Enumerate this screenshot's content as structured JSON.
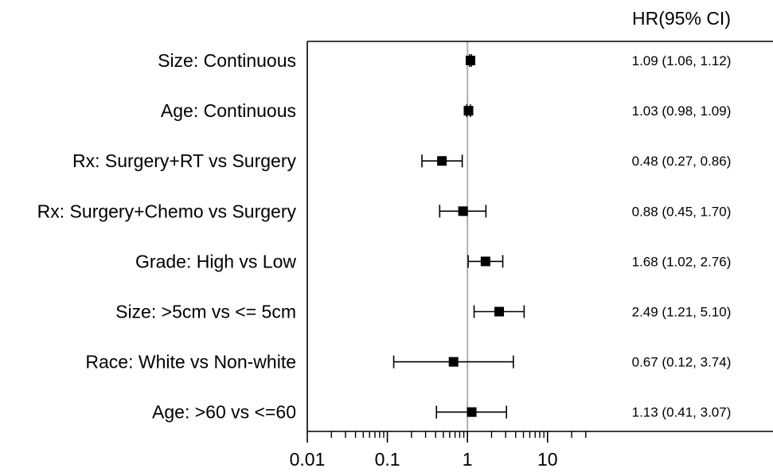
{
  "chart_data": {
    "type": "forest",
    "xscale": "log",
    "xlim": [
      0.01,
      1000
    ],
    "reference_line": 1,
    "column_header": "HR(95% CI)",
    "xticks": [
      {
        "value": 0.01,
        "label": "0.01"
      },
      {
        "value": 0.1,
        "label": "0.1"
      },
      {
        "value": 1,
        "label": "1"
      },
      {
        "value": 10,
        "label": "10"
      }
    ],
    "rows": [
      {
        "label": "Size: Continuous",
        "hr": 1.09,
        "lower": 1.06,
        "upper": 1.12,
        "ci_text": "1.09 (1.06, 1.12)"
      },
      {
        "label": "Age: Continuous",
        "hr": 1.03,
        "lower": 0.98,
        "upper": 1.09,
        "ci_text": "1.03 (0.98, 1.09)"
      },
      {
        "label": "Rx: Surgery+RT vs Surgery",
        "hr": 0.48,
        "lower": 0.27,
        "upper": 0.86,
        "ci_text": "0.48 (0.27, 0.86)"
      },
      {
        "label": "Rx: Surgery+Chemo vs Surgery",
        "hr": 0.88,
        "lower": 0.45,
        "upper": 1.7,
        "ci_text": "0.88 (0.45, 1.70)"
      },
      {
        "label": "Grade: High vs Low",
        "hr": 1.68,
        "lower": 1.02,
        "upper": 2.76,
        "ci_text": "1.68 (1.02, 2.76)"
      },
      {
        "label": "Size: >5cm vs <= 5cm",
        "hr": 2.49,
        "lower": 1.21,
        "upper": 5.1,
        "ci_text": "2.49 (1.21, 5.10)"
      },
      {
        "label": "Race: White vs Non-white",
        "hr": 0.67,
        "lower": 0.12,
        "upper": 3.74,
        "ci_text": "0.67 (0.12, 3.74)"
      },
      {
        "label": "Age: >60 vs <=60",
        "hr": 1.13,
        "lower": 0.41,
        "upper": 3.07,
        "ci_text": "1.13 (0.41, 3.07)"
      }
    ],
    "colors": {
      "marker": "#000000",
      "reference_line": "#b0b0b0",
      "frame": "#000000"
    }
  }
}
